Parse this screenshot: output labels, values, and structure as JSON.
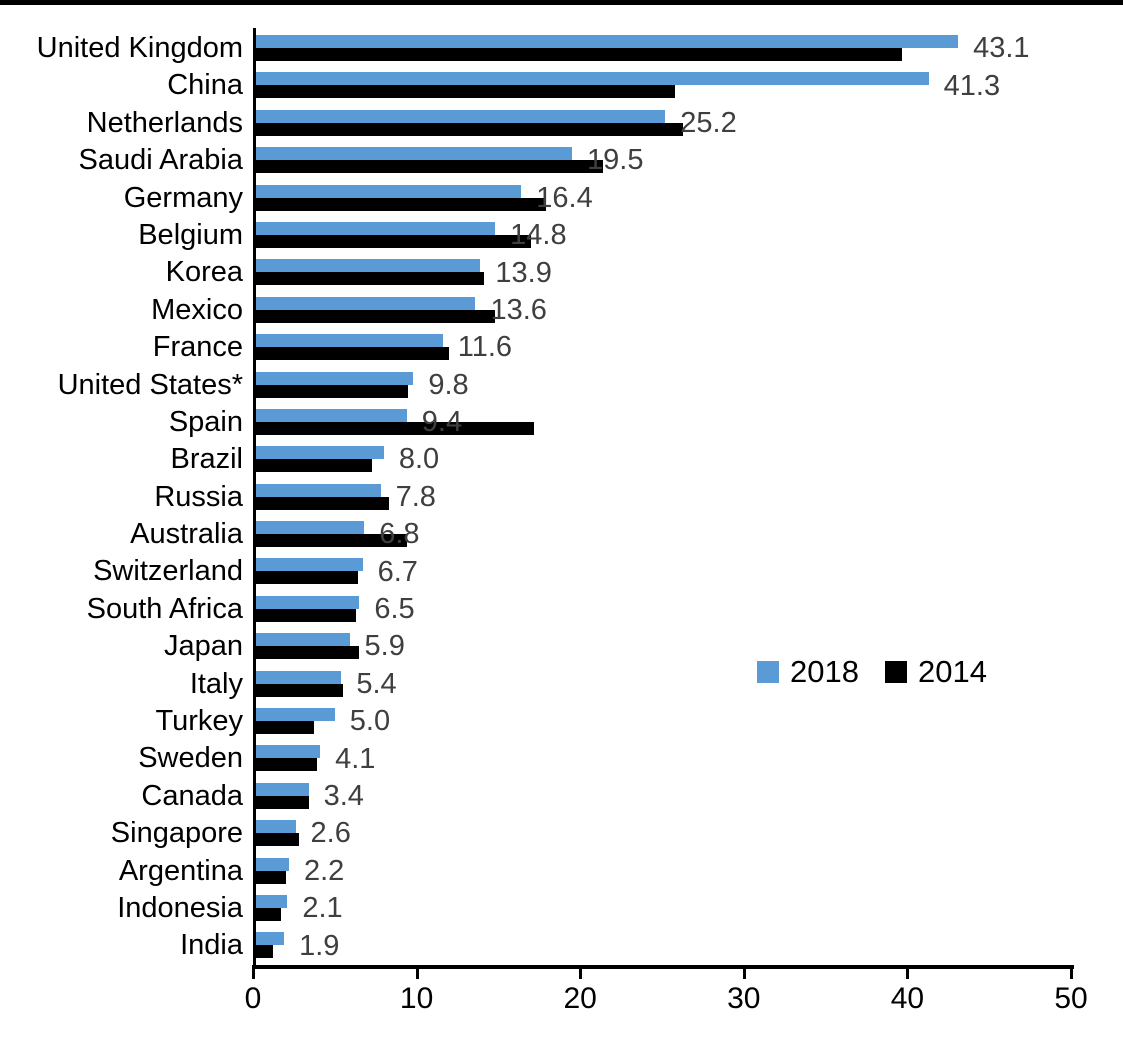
{
  "chart_data": {
    "type": "bar",
    "orientation": "horizontal",
    "title": "",
    "xlabel": "",
    "ylabel": "",
    "xlim": [
      0,
      50
    ],
    "x_ticks": [
      0,
      10,
      20,
      30,
      40,
      50
    ],
    "grid": false,
    "categories": [
      "United Kingdom",
      "China",
      "Netherlands",
      "Saudi Arabia",
      "Germany",
      "Belgium",
      "Korea",
      "Mexico",
      "France",
      "United States*",
      "Spain",
      "Brazil",
      "Russia",
      "Australia",
      "Switzerland",
      "South Africa",
      "Japan",
      "Italy",
      "Turkey",
      "Sweden",
      "Canada",
      "Singapore",
      "Argentina",
      "Indonesia",
      "India"
    ],
    "series": [
      {
        "name": "2018",
        "color": "#5B9BD5",
        "data_labels_shown": true,
        "values": [
          43.1,
          41.3,
          25.2,
          19.5,
          16.4,
          14.8,
          13.9,
          13.6,
          11.6,
          9.8,
          9.4,
          8.0,
          7.8,
          6.8,
          6.7,
          6.5,
          5.9,
          5.4,
          5.0,
          4.1,
          3.4,
          2.6,
          2.2,
          2.1,
          1.9
        ]
      },
      {
        "name": "2014",
        "color": "#000000",
        "data_labels_shown": false,
        "values": [
          39.7,
          25.8,
          26.3,
          21.4,
          17.9,
          17.0,
          14.1,
          14.8,
          12.0,
          9.5,
          17.2,
          7.3,
          8.3,
          9.4,
          6.4,
          6.3,
          6.5,
          5.5,
          3.7,
          3.9,
          3.4,
          2.8,
          2.0,
          1.7,
          1.2
        ]
      }
    ],
    "data_labels": [
      "43.1",
      "41.3",
      "25.2",
      "19.5",
      "16.4",
      "14.8",
      "13.9",
      "13.6",
      "11.6",
      "9.8",
      "9.4",
      "8.0",
      "7.8",
      "6.8",
      "6.7",
      "6.5",
      "5.9",
      "5.4",
      "5.0",
      "4.1",
      "3.4",
      "2.6",
      "2.2",
      "2.1",
      "1.9"
    ],
    "legend": {
      "position": "middle-right",
      "items": [
        {
          "label": "2018",
          "color": "#5B9BD5"
        },
        {
          "label": "2014",
          "color": "#000000"
        }
      ]
    }
  },
  "styles": {
    "bar_blue": "#5B9BD5",
    "bar_black": "#000000",
    "value_label_color": "#3F3F3F",
    "axis_color": "#000000",
    "background": "#ffffff"
  }
}
